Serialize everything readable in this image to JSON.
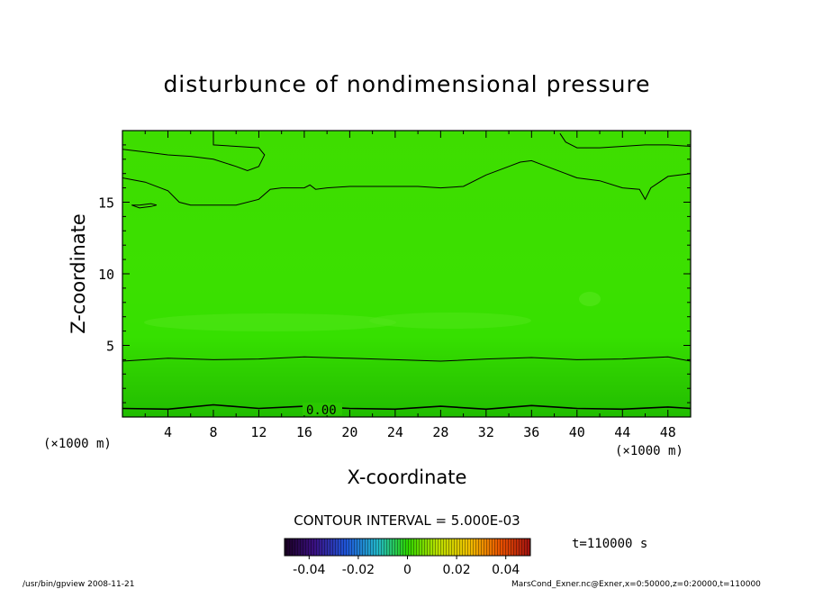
{
  "chart_data": {
    "type": "heatmap",
    "title": "disturbunce of nondimensional pressure",
    "xlabel": "X-coordinate",
    "ylabel": "Z-coordinate",
    "x_unit_left": "(×1000 m)",
    "x_unit_right": "(×1000 m)",
    "xlim": [
      0,
      50
    ],
    "ylim": [
      0,
      20
    ],
    "x_ticks": [
      "4",
      "8",
      "12",
      "16",
      "20",
      "24",
      "28",
      "32",
      "36",
      "40",
      "44",
      "48"
    ],
    "y_ticks": [
      "5",
      "10",
      "15"
    ],
    "contour_interval_label": "CONTOUR INTERVAL = 5.000E-03",
    "contour_label": "0.00",
    "colorbar": {
      "range": [
        -0.05,
        0.05
      ],
      "tick_labels": [
        "-0.04",
        "-0.02",
        "0",
        "0.02",
        "0.04"
      ]
    },
    "time_label": "t=110000 s",
    "footer_left": "/usr/bin/gpview  2008-11-21",
    "footer_right": "MarsCond_Exner.nc@Exner,x=0:50000,z=0:20000,t=110000",
    "fill_colors": {
      "background": "#3ddc00",
      "mid_band": "#36e400",
      "low_band": "#2ccc00",
      "bottom": "#22c000",
      "light_patch": "#52e61a"
    },
    "contours": [
      {
        "level": "0.00",
        "points": [
          [
            0,
            0.6
          ],
          [
            4,
            0.55
          ],
          [
            8,
            0.85
          ],
          [
            12,
            0.6
          ],
          [
            16,
            0.75
          ],
          [
            20,
            0.6
          ],
          [
            24,
            0.55
          ],
          [
            28,
            0.75
          ],
          [
            32,
            0.55
          ],
          [
            36,
            0.8
          ],
          [
            40,
            0.6
          ],
          [
            44,
            0.55
          ],
          [
            48,
            0.7
          ],
          [
            50,
            0.6
          ]
        ]
      },
      {
        "points": [
          [
            0,
            3.9
          ],
          [
            4,
            4.1
          ],
          [
            8,
            4.0
          ],
          [
            12,
            4.05
          ],
          [
            16,
            4.2
          ],
          [
            20,
            4.1
          ],
          [
            24,
            4.0
          ],
          [
            28,
            3.9
          ],
          [
            32,
            4.05
          ],
          [
            36,
            4.15
          ],
          [
            40,
            4.0
          ],
          [
            44,
            4.05
          ],
          [
            48,
            4.2
          ],
          [
            50,
            3.9
          ]
        ]
      },
      {
        "points": [
          [
            0,
            16.7
          ],
          [
            2,
            16.4
          ],
          [
            4,
            15.8
          ],
          [
            5,
            15.0
          ],
          [
            6,
            14.8
          ],
          [
            8,
            14.8
          ],
          [
            10,
            14.8
          ],
          [
            12,
            15.2
          ],
          [
            13,
            15.9
          ],
          [
            14,
            16.0
          ],
          [
            15,
            16.0
          ],
          [
            16,
            16.0
          ],
          [
            16.5,
            16.2
          ],
          [
            17,
            15.9
          ],
          [
            18,
            16.0
          ],
          [
            20,
            16.1
          ],
          [
            22,
            16.1
          ],
          [
            26,
            16.1
          ],
          [
            28,
            16.0
          ],
          [
            30,
            16.1
          ],
          [
            32,
            16.9
          ],
          [
            34,
            17.5
          ],
          [
            35,
            17.8
          ],
          [
            36,
            17.9
          ],
          [
            37,
            17.6
          ],
          [
            39,
            17.0
          ],
          [
            40,
            16.7
          ],
          [
            42,
            16.5
          ],
          [
            44,
            16.0
          ],
          [
            45.5,
            15.9
          ],
          [
            46,
            15.2
          ],
          [
            46.5,
            16.0
          ],
          [
            48,
            16.8
          ],
          [
            50,
            17.0
          ]
        ]
      },
      {
        "points": [
          [
            0,
            18.7
          ],
          [
            2,
            18.5
          ],
          [
            4,
            18.3
          ],
          [
            6,
            18.2
          ],
          [
            8,
            18.0
          ],
          [
            10,
            17.5
          ],
          [
            11,
            17.2
          ],
          [
            12,
            17.5
          ],
          [
            12.5,
            18.3
          ],
          [
            12,
            18.8
          ],
          [
            10,
            18.9
          ],
          [
            8,
            19.0
          ],
          [
            8,
            19.8
          ]
        ]
      },
      {
        "points": [
          [
            38.5,
            19.8
          ],
          [
            39,
            19.2
          ],
          [
            40,
            18.8
          ],
          [
            42,
            18.8
          ],
          [
            44,
            18.9
          ],
          [
            46,
            19.0
          ],
          [
            48,
            19.0
          ],
          [
            50,
            18.9
          ]
        ]
      },
      {
        "points": [
          [
            0.8,
            14.8
          ],
          [
            1.5,
            14.8
          ],
          [
            2.5,
            14.9
          ],
          [
            3,
            14.8
          ],
          [
            2.5,
            14.7
          ],
          [
            1.5,
            14.6
          ],
          [
            0.8,
            14.8
          ]
        ]
      }
    ]
  }
}
